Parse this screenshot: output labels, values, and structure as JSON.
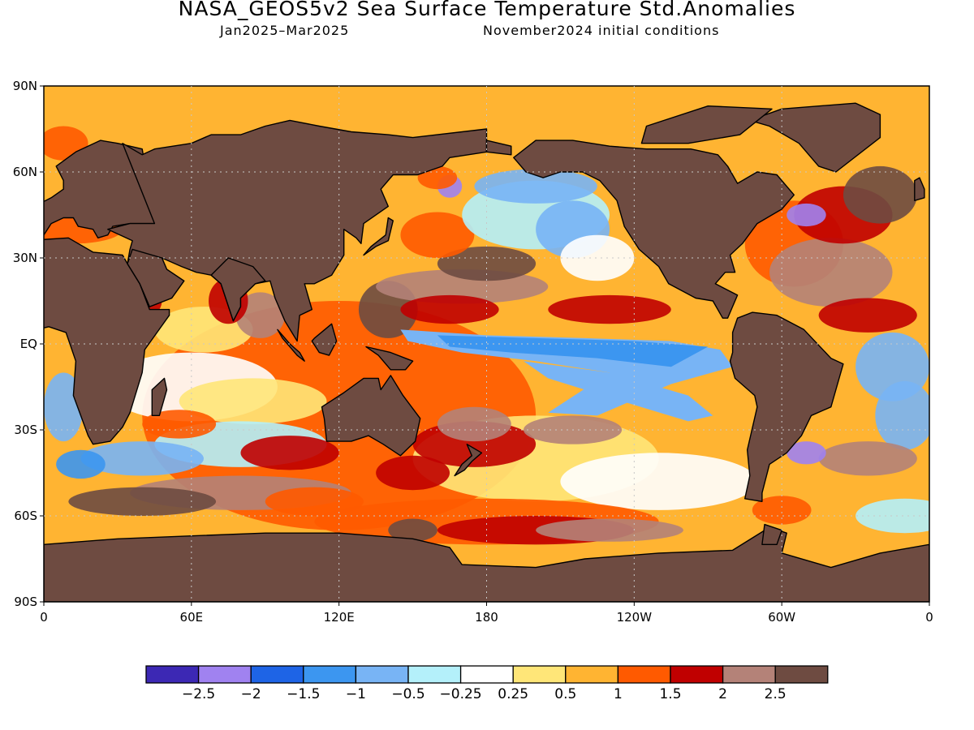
{
  "title": "NASA_GEOS5v2 Sea Surface Temperature Std.Anomalies",
  "period": "Jan2025–Mar2025",
  "init": "November2024 initial conditions",
  "lat_ticks": [
    {
      "label": "90N",
      "lat": 90
    },
    {
      "label": "60N",
      "lat": 60
    },
    {
      "label": "30N",
      "lat": 30
    },
    {
      "label": "EQ",
      "lat": 0
    },
    {
      "label": "30S",
      "lat": -30
    },
    {
      "label": "60S",
      "lat": -60
    },
    {
      "label": "90S",
      "lat": -90
    }
  ],
  "lon_ticks": [
    {
      "label": "0",
      "lon": 0
    },
    {
      "label": "60E",
      "lon": 60
    },
    {
      "label": "120E",
      "lon": 120
    },
    {
      "label": "180",
      "lon": 180
    },
    {
      "label": "120W",
      "lon": 240
    },
    {
      "label": "60W",
      "lon": 300
    },
    {
      "label": "0",
      "lon": 360
    }
  ],
  "colorbar": {
    "colors": [
      "#3c28b4",
      "#a082f0",
      "#1e64e6",
      "#3c96f0",
      "#78b4f5",
      "#b4f0fa",
      "#ffffff",
      "#ffe678",
      "#ffb432",
      "#ff5a00",
      "#c00000",
      "#b48278",
      "#6e4b41"
    ],
    "labels": [
      "−2.5",
      "−2",
      "−1.5",
      "−1",
      "−0.5",
      "−0.25",
      "0.25",
      "0.5",
      "1",
      "1.5",
      "2",
      "2.5"
    ]
  },
  "colors": {
    "land": "#6e4b41",
    "ocean_neutral": "#ffffff",
    "coast": "#000000"
  }
}
